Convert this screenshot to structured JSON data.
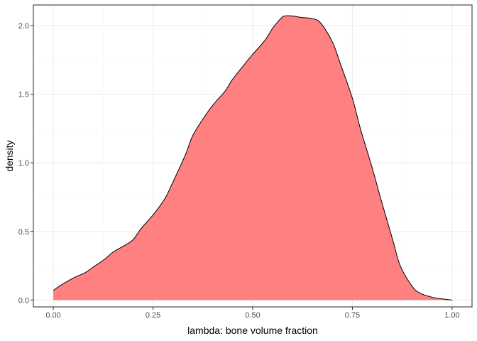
{
  "chart_data": {
    "type": "area",
    "title": "",
    "xlabel": "lambda: bone volume fraction",
    "ylabel": "density",
    "xlim": [
      -0.05,
      1.05
    ],
    "ylim": [
      -0.05,
      2.15
    ],
    "x_ticks": [
      0.0,
      0.25,
      0.5,
      0.75,
      1.0
    ],
    "x_tick_labels": [
      "0.00",
      "0.25",
      "0.50",
      "0.75",
      "1.00"
    ],
    "y_ticks": [
      0.0,
      0.5,
      1.0,
      1.5,
      2.0
    ],
    "y_tick_labels": [
      "0.0",
      "0.5",
      "1.0",
      "1.5",
      "2.0"
    ],
    "grid": true,
    "legend": "none",
    "fill_color": "#ff8080",
    "line_color": "#000000",
    "series": [
      {
        "x": [
          0.0,
          0.02,
          0.05,
          0.08,
          0.1,
          0.13,
          0.15,
          0.18,
          0.2,
          0.22,
          0.25,
          0.28,
          0.3,
          0.33,
          0.35,
          0.38,
          0.4,
          0.43,
          0.45,
          0.48,
          0.5,
          0.53,
          0.55,
          0.57,
          0.58,
          0.6,
          0.62,
          0.65,
          0.67,
          0.7,
          0.72,
          0.75,
          0.77,
          0.8,
          0.82,
          0.85,
          0.87,
          0.9,
          0.92,
          0.95,
          0.97,
          1.0
        ],
        "y": [
          0.07,
          0.11,
          0.16,
          0.2,
          0.24,
          0.3,
          0.35,
          0.4,
          0.44,
          0.52,
          0.62,
          0.74,
          0.86,
          1.05,
          1.2,
          1.34,
          1.42,
          1.52,
          1.61,
          1.72,
          1.79,
          1.89,
          1.98,
          2.05,
          2.07,
          2.07,
          2.06,
          2.05,
          2.02,
          1.88,
          1.72,
          1.47,
          1.25,
          0.96,
          0.75,
          0.45,
          0.25,
          0.1,
          0.05,
          0.02,
          0.01,
          0.0
        ]
      }
    ]
  }
}
